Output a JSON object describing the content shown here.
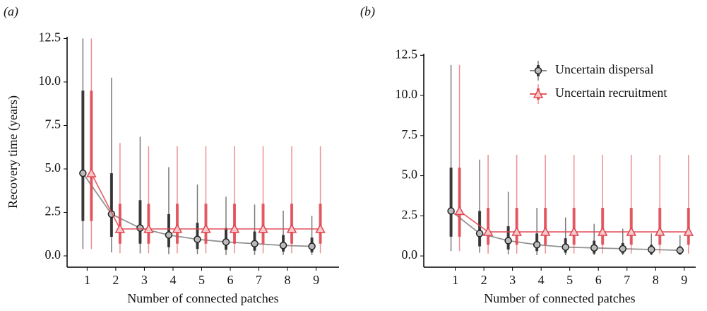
{
  "chart_data": [
    {
      "type": "line",
      "label": "(a)",
      "xlabel": "Number of connected patches",
      "ylabel": "Recovery time (years)",
      "x": [
        1,
        2,
        3,
        4,
        5,
        6,
        7,
        8,
        9
      ],
      "xlim": [
        0.3,
        9.8
      ],
      "xticks": [
        1,
        2,
        3,
        4,
        5,
        6,
        7,
        8,
        9
      ],
      "ylim": [
        -0.65,
        12.6
      ],
      "yticks": [
        {
          "value": 0,
          "label": "0.0"
        },
        2.5,
        {
          "value": 5,
          "label": "5.0"
        },
        7.5,
        {
          "value": 10,
          "label": "10.0"
        },
        12.5
      ],
      "series": [
        {
          "color": "#222222",
          "marker": "circle",
          "values": [
            4.75,
            2.4,
            1.6,
            1.2,
            0.95,
            0.8,
            0.7,
            0.6,
            0.55
          ],
          "thin_low": [
            0.4,
            0.2,
            0.15,
            0.1,
            0.1,
            0.05,
            0.05,
            0.05,
            0.05
          ],
          "thin_high": [
            12.5,
            10.25,
            6.85,
            5.1,
            4.1,
            3.4,
            2.95,
            2.6,
            2.3
          ],
          "thick_low": [
            2.0,
            1.1,
            0.7,
            0.5,
            0.4,
            0.35,
            0.3,
            0.25,
            0.2
          ],
          "thick_high": [
            9.5,
            4.75,
            3.2,
            2.4,
            1.9,
            1.6,
            1.4,
            1.2,
            1.05
          ]
        },
        {
          "color": "#e0454f",
          "marker": "triangle",
          "values": [
            4.75,
            1.55,
            1.55,
            1.55,
            1.55,
            1.55,
            1.55,
            1.55,
            1.55
          ],
          "thin_low": [
            0.4,
            0.15,
            0.15,
            0.15,
            0.15,
            0.15,
            0.15,
            0.15,
            0.15
          ],
          "thin_high": [
            12.5,
            6.5,
            6.3,
            6.3,
            6.3,
            6.3,
            6.3,
            6.3,
            6.3
          ],
          "thick_low": [
            2.0,
            0.7,
            0.7,
            0.7,
            0.7,
            0.7,
            0.7,
            0.7,
            0.7
          ],
          "thick_high": [
            9.5,
            3.0,
            3.0,
            3.0,
            3.0,
            3.0,
            3.0,
            3.0,
            3.0
          ]
        }
      ]
    },
    {
      "type": "line",
      "label": "(b)",
      "xlabel": "Number of connected patches",
      "x": [
        1,
        2,
        3,
        4,
        5,
        6,
        7,
        8,
        9
      ],
      "xlim": [
        -0.1,
        9.4
      ],
      "xticks": [
        1,
        2,
        3,
        4,
        5,
        6,
        7,
        8,
        9
      ],
      "ylim": [
        -0.7,
        12.6
      ],
      "yticks": [
        {
          "value": 0,
          "label": "0.0"
        },
        2.5,
        {
          "value": 5,
          "label": "5.0"
        },
        7.5,
        {
          "value": 10,
          "label": "10.0"
        },
        12.5
      ],
      "series": [
        {
          "name": "Uncertain dispersal",
          "color": "#222222",
          "marker": "circle",
          "values": [
            2.8,
            1.4,
            0.95,
            0.7,
            0.55,
            0.5,
            0.45,
            0.4,
            0.35
          ],
          "thin_low": [
            0.3,
            0.2,
            0.1,
            0.05,
            0.05,
            0.05,
            0.05,
            0.05,
            0.05
          ],
          "thin_high": [
            11.9,
            6.0,
            4.0,
            3.0,
            2.4,
            2.0,
            1.7,
            1.4,
            1.3
          ],
          "thick_low": [
            1.2,
            0.6,
            0.4,
            0.3,
            0.2,
            0.15,
            0.15,
            0.1,
            0.1
          ],
          "thick_high": [
            5.5,
            2.8,
            1.85,
            1.4,
            1.1,
            0.95,
            0.8,
            0.7,
            0.6
          ]
        },
        {
          "name": "Uncertain recruitment",
          "color": "#e0454f",
          "marker": "triangle",
          "values": [
            2.8,
            1.5,
            1.5,
            1.5,
            1.5,
            1.5,
            1.5,
            1.5,
            1.5
          ],
          "thin_low": [
            0.3,
            0.15,
            0.15,
            0.15,
            0.15,
            0.15,
            0.15,
            0.15,
            0.15
          ],
          "thin_high": [
            11.9,
            6.3,
            6.3,
            6.3,
            6.3,
            6.3,
            6.3,
            6.3,
            6.3
          ],
          "thick_low": [
            1.2,
            0.7,
            0.7,
            0.7,
            0.7,
            0.7,
            0.7,
            0.7,
            0.7
          ],
          "thick_high": [
            5.5,
            3.0,
            3.0,
            3.0,
            3.0,
            3.0,
            3.0,
            3.0,
            3.0
          ]
        }
      ]
    }
  ]
}
